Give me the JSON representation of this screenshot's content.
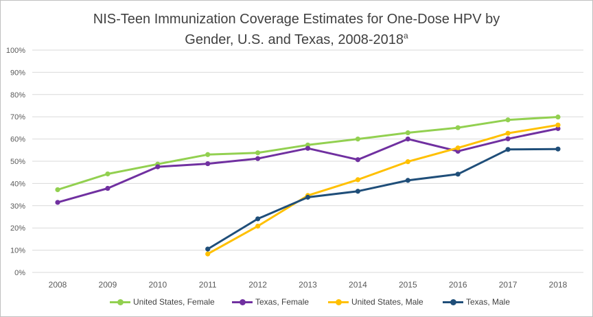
{
  "chart_data": {
    "type": "line",
    "title_line1": "NIS-Teen Immunization Coverage Estimates for One-Dose HPV by",
    "title_line2": "Gender, U.S. and Texas, 2008-2018",
    "title_superscript": "a",
    "categories": [
      "2008",
      "2009",
      "2010",
      "2011",
      "2012",
      "2013",
      "2014",
      "2015",
      "2016",
      "2017",
      "2018"
    ],
    "y_tick_labels": [
      "0%",
      "10%",
      "20%",
      "30%",
      "40%",
      "50%",
      "60%",
      "70%",
      "80%",
      "90%",
      "100%"
    ],
    "ylim": [
      0,
      100
    ],
    "y_step": 10,
    "grid": true,
    "legend_position": "bottom",
    "series": [
      {
        "name": "United States, Female",
        "color": "#92d050",
        "values": [
          37.2,
          44.3,
          48.7,
          53.0,
          53.8,
          57.3,
          60.0,
          62.8,
          65.1,
          68.6,
          69.9
        ]
      },
      {
        "name": "Texas, Female",
        "color": "#7030a0",
        "values": [
          31.5,
          37.8,
          47.5,
          48.9,
          51.2,
          55.8,
          50.7,
          60.0,
          54.5,
          60.1,
          64.7
        ]
      },
      {
        "name": "United States, Male",
        "color": "#ffc000",
        "values": [
          null,
          null,
          null,
          8.3,
          20.8,
          34.6,
          41.7,
          49.8,
          56.0,
          62.6,
          66.3
        ]
      },
      {
        "name": "Texas, Male",
        "color": "#1f4e79",
        "values": [
          null,
          null,
          null,
          10.5,
          24.1,
          33.8,
          36.5,
          41.4,
          44.2,
          55.3,
          55.5
        ]
      }
    ]
  }
}
